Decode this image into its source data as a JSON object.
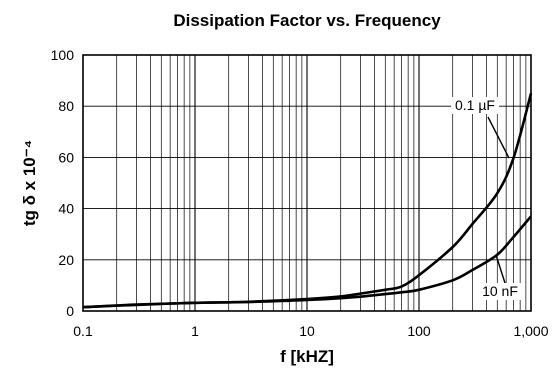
{
  "chart_data": {
    "type": "line",
    "title": "Dissipation Factor vs. Frequency",
    "xlabel": "f [kHZ]",
    "ylabel": "tg δ x 10⁻⁴",
    "xscale": "log",
    "xlim": [
      0.1,
      1000
    ],
    "ylim": [
      0,
      100
    ],
    "x_ticks": [
      0.1,
      1,
      10,
      100,
      1000
    ],
    "x_tick_labels": [
      "0.1",
      "1",
      "10",
      "100",
      "1,000"
    ],
    "y_ticks": [
      0,
      20,
      40,
      60,
      80,
      100
    ],
    "y_tick_labels": [
      "0",
      "20",
      "40",
      "60",
      "80",
      "100"
    ],
    "grid": true,
    "series": [
      {
        "name": "0.1 µF",
        "x": [
          0.1,
          0.3,
          1,
          3,
          10,
          20,
          30,
          50,
          70,
          100,
          200,
          300,
          500,
          700,
          1000
        ],
        "y": [
          1.5,
          2.5,
          3.2,
          3.6,
          4.7,
          5.7,
          6.8,
          8.3,
          9.6,
          14,
          25,
          34,
          46,
          60,
          85
        ]
      },
      {
        "name": "10 nF",
        "x": [
          0.1,
          0.3,
          1,
          3,
          10,
          20,
          30,
          50,
          70,
          100,
          200,
          300,
          500,
          700,
          1000
        ],
        "y": [
          1.5,
          2.4,
          3.2,
          3.5,
          4.3,
          5.0,
          5.6,
          6.6,
          7.3,
          8.3,
          12,
          16,
          22,
          29,
          37
        ]
      }
    ],
    "annotations": [
      {
        "text": "0.1 µF",
        "series": "0.1 µF",
        "x": 680,
        "y": 58
      },
      {
        "text": "10 nF",
        "series": "10 nF",
        "x": 720,
        "y": 25
      }
    ]
  }
}
